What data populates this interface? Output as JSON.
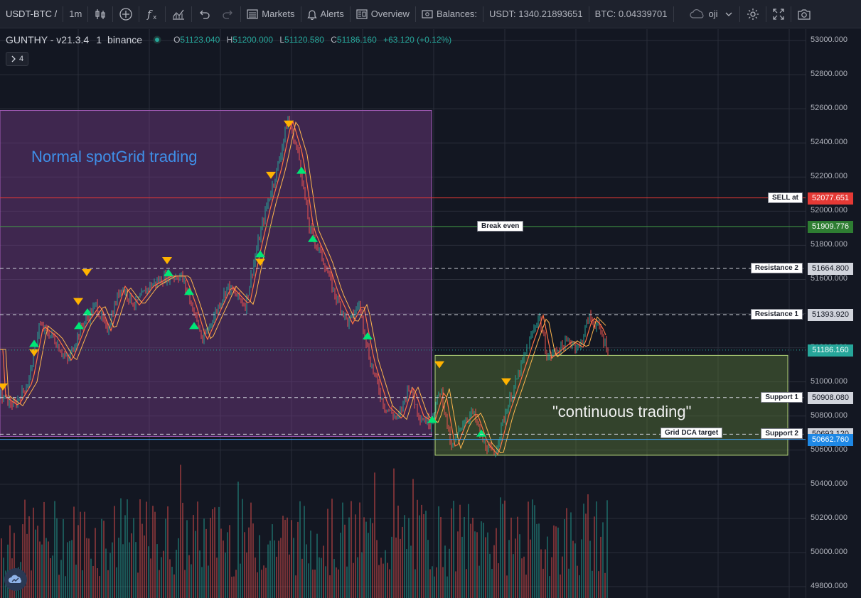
{
  "toolbar": {
    "symbol": "USDT-BTC /",
    "interval": "1m",
    "markets_label": "Markets",
    "alerts_label": "Alerts",
    "overview_label": "Overview",
    "balances_label": "Balances:",
    "usdt_balance": "USDT: 1340.21893651",
    "btc_balance": "BTC: 0.04339701",
    "user": "oji"
  },
  "legend": {
    "title": "GUNTHY - v21.3.4",
    "interval": "1",
    "exchange": "binance",
    "open_key": "O",
    "open": "51123.040",
    "high_key": "H",
    "high": "51200.000",
    "low_key": "L",
    "low": "51120.580",
    "close_key": "C",
    "close": "51186.160",
    "change": "+63.120 (+0.12%)",
    "collapsed_count": "4"
  },
  "price_axis": {
    "ticks": [
      "53000.000",
      "52800.000",
      "52600.000",
      "52400.000",
      "52200.000",
      "52000.000",
      "51800.000",
      "51600.000",
      "51400.000",
      "51200.000",
      "51000.000",
      "50800.000",
      "50600.000",
      "50400.000",
      "50200.000",
      "50000.000",
      "49800.000"
    ]
  },
  "levels": [
    {
      "label": "SELL at",
      "value": "52077.651",
      "color": "#e53935",
      "style": "solid",
      "badge_bg": "#e53935",
      "badge_fg": "#ffffff"
    },
    {
      "label": "Break even",
      "value": "51909.776",
      "color": "#43a047",
      "style": "solid",
      "badge_bg": "#2e7d32",
      "badge_fg": "#ffffff"
    },
    {
      "label": "Resistance 2",
      "value": "51664.800",
      "color": "#d1d4dc",
      "style": "dashed",
      "badge_bg": "#d1d4dc",
      "badge_fg": "#131722"
    },
    {
      "label": "Resistance 1",
      "value": "51393.920",
      "color": "#d1d4dc",
      "style": "dashed",
      "badge_bg": "#d1d4dc",
      "badge_fg": "#131722"
    },
    {
      "label": "",
      "value": "51186.160",
      "color": "#26a69a",
      "style": "dotted",
      "badge_bg": "#26a69a",
      "badge_fg": "#ffffff"
    },
    {
      "label": "Support 1",
      "value": "50908.080",
      "color": "#d1d4dc",
      "style": "dashed",
      "badge_bg": "#d1d4dc",
      "badge_fg": "#131722"
    },
    {
      "label": "Support 2",
      "value": "50693.120",
      "color": "#d1d4dc",
      "style": "dashed",
      "badge_bg": "#d1d4dc",
      "badge_fg": "#131722"
    },
    {
      "label": "Grid DCA target",
      "value": "50662.760",
      "color": "#42a5f5",
      "style": "solid",
      "badge_bg": "#1e88e5",
      "badge_fg": "#ffffff"
    }
  ],
  "zones": [
    {
      "text": "Normal spotGrid trading",
      "color": "#7b3f8f",
      "text_color": "#3f8fe8",
      "y_top": 52590,
      "y_bottom": 50680
    },
    {
      "text": "\"continuous trading\"",
      "color": "#5c7a3a",
      "text_color": "#f0f0f0",
      "y_top": 51155,
      "y_bottom": 50570
    }
  ],
  "colors": {
    "up": "#26a69a",
    "down": "#ef5350",
    "buy_marker": "#00e676",
    "sell_marker": "#ffb300",
    "background": "#131722"
  }
}
